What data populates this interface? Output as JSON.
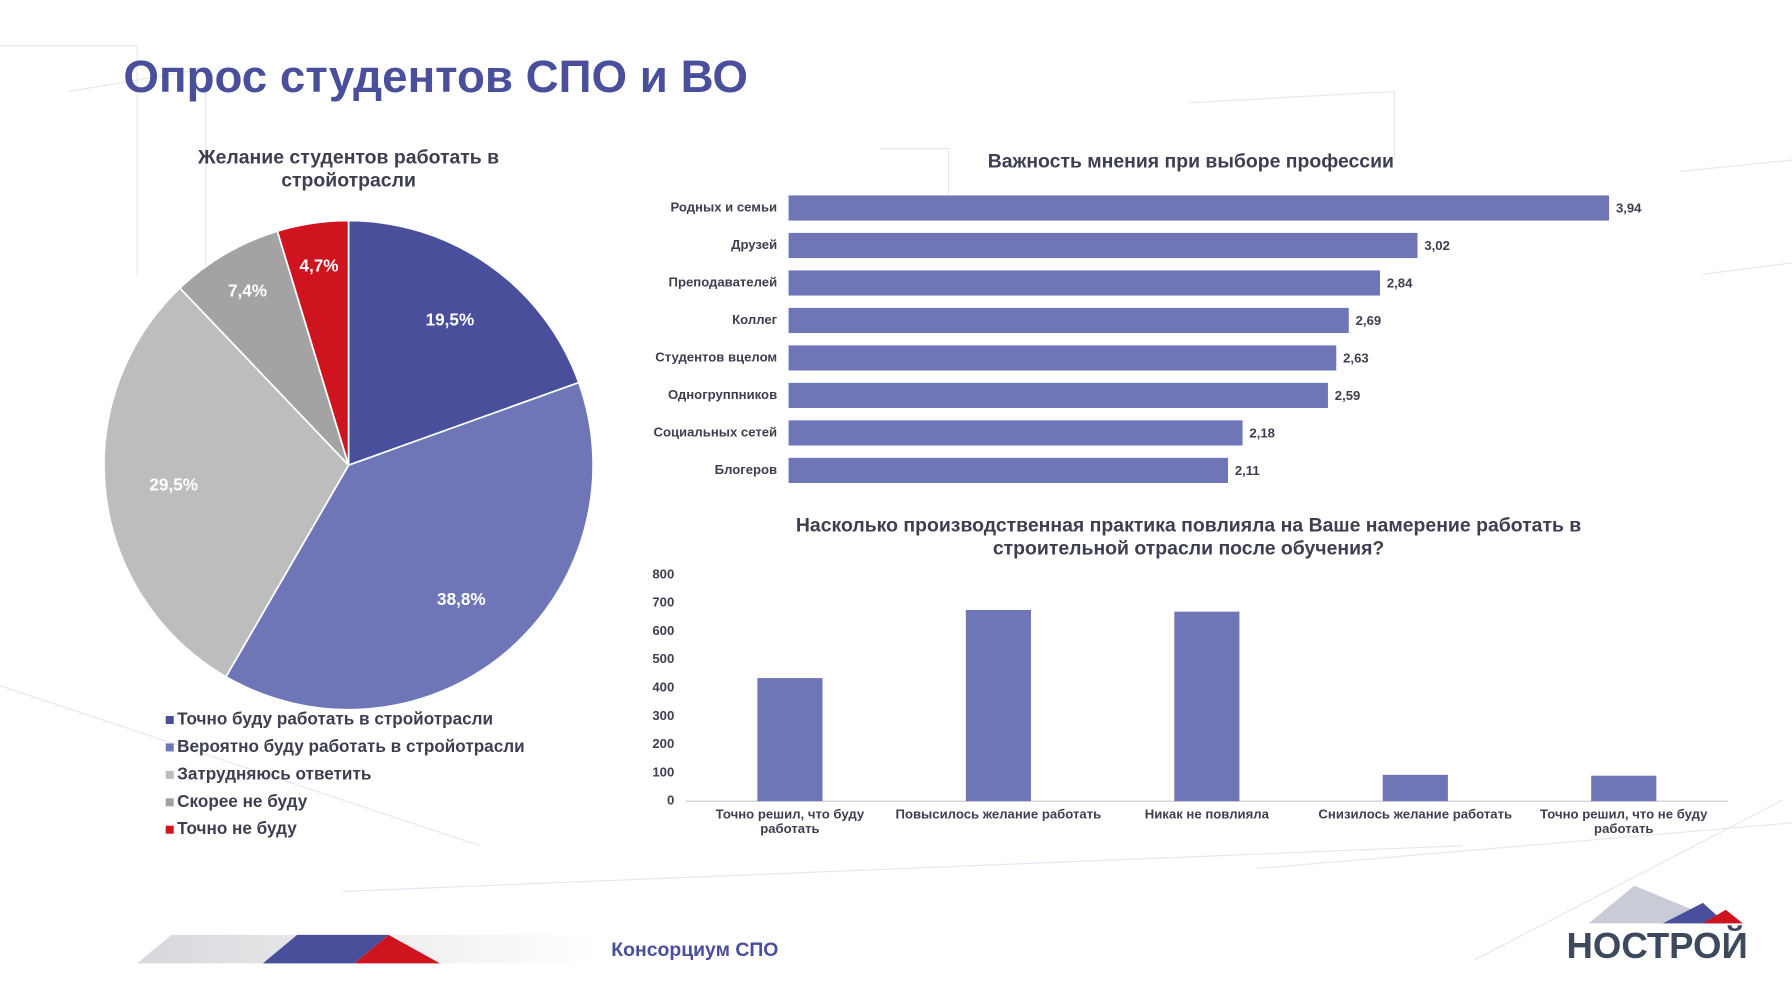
{
  "title": "Опрос студентов СПО и ВО",
  "footer": "Консорциум СПО",
  "logo": "НОСТРОЙ",
  "chart_data": [
    {
      "type": "pie",
      "title": "Желание студентов работать в стройотрасли",
      "categories": [
        "Точно буду работать в стройотрасли",
        "Вероятно буду работать в стройотрасли",
        "Затрудняюсь ответить",
        "Скорее не буду",
        "Точно не буду"
      ],
      "values": [
        19.5,
        38.8,
        29.5,
        7.4,
        4.7
      ],
      "value_labels": [
        "19,5%",
        "38,8%",
        "29,5%",
        "7,4%",
        "4,7%"
      ],
      "colors": [
        "#4a4f9c",
        "#6e76b8",
        "#bdbdbd",
        "#a3a3a3",
        "#d0141f"
      ]
    },
    {
      "type": "hbar",
      "title": "Важность мнения при выборе профессии",
      "categories": [
        "Родных и семьи",
        "Друзей",
        "Преподавателей",
        "Коллег",
        "Студентов вцелом",
        "Одногруппников",
        "Социальных сетей",
        "Блогеров"
      ],
      "values": [
        3.94,
        3.02,
        2.84,
        2.69,
        2.63,
        2.59,
        2.18,
        2.11
      ],
      "value_labels": [
        "3,94",
        "3,02",
        "2,84",
        "2,69",
        "2,63",
        "2,59",
        "2,18",
        "2,11"
      ],
      "color": "#6e76b8",
      "xlim": [
        0,
        4.5
      ]
    },
    {
      "type": "bar",
      "title": "Насколько производственная практика повлияла на Ваше намерение работать в строительной отрасли после обучения?",
      "categories": [
        "Точно решил, что буду работать",
        "Повысилось желание работать",
        "Никак не повлияла",
        "Снизилось желание работать",
        "Точно решил, что не буду работать"
      ],
      "values": [
        435,
        676,
        670,
        93,
        90
      ],
      "color": "#6e76b8",
      "ylim": [
        0,
        800
      ],
      "yticks": [
        0,
        100,
        200,
        300,
        400,
        500,
        600,
        700,
        800
      ]
    }
  ]
}
